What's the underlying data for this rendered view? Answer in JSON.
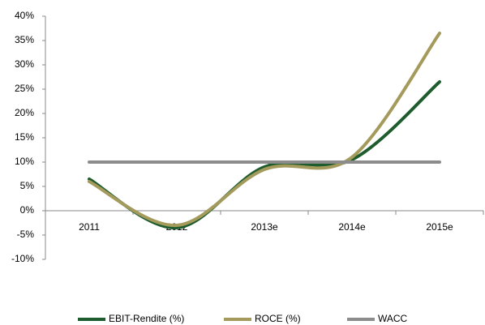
{
  "chart_data": {
    "type": "line",
    "categories": [
      "2011",
      "2012",
      "2013e",
      "2014e",
      "2015e"
    ],
    "series": [
      {
        "name": "EBIT-Rendite (%)",
        "color": "#1e5c2e",
        "values": [
          6.5,
          -3.5,
          9,
          10.5,
          26.5
        ]
      },
      {
        "name": "ROCE (%)",
        "color": "#a39a5c",
        "values": [
          6,
          -3,
          8.5,
          11,
          36.5
        ]
      },
      {
        "name": "WACC",
        "color": "#8c8c8c",
        "values": [
          10,
          10,
          10,
          10,
          10
        ]
      }
    ],
    "ylim": [
      -10,
      40
    ],
    "yticks": [
      {
        "value": -10,
        "label": "-10%"
      },
      {
        "value": -5,
        "label": "-5%"
      },
      {
        "value": 0,
        "label": "0%"
      },
      {
        "value": 5,
        "label": "5%"
      },
      {
        "value": 10,
        "label": "10%"
      },
      {
        "value": 15,
        "label": "15%"
      },
      {
        "value": 20,
        "label": "20%"
      },
      {
        "value": 25,
        "label": "25%"
      },
      {
        "value": 30,
        "label": "30%"
      },
      {
        "value": 35,
        "label": "35%"
      },
      {
        "value": 40,
        "label": "40%"
      }
    ],
    "grid": false,
    "legend": "bottom"
  }
}
